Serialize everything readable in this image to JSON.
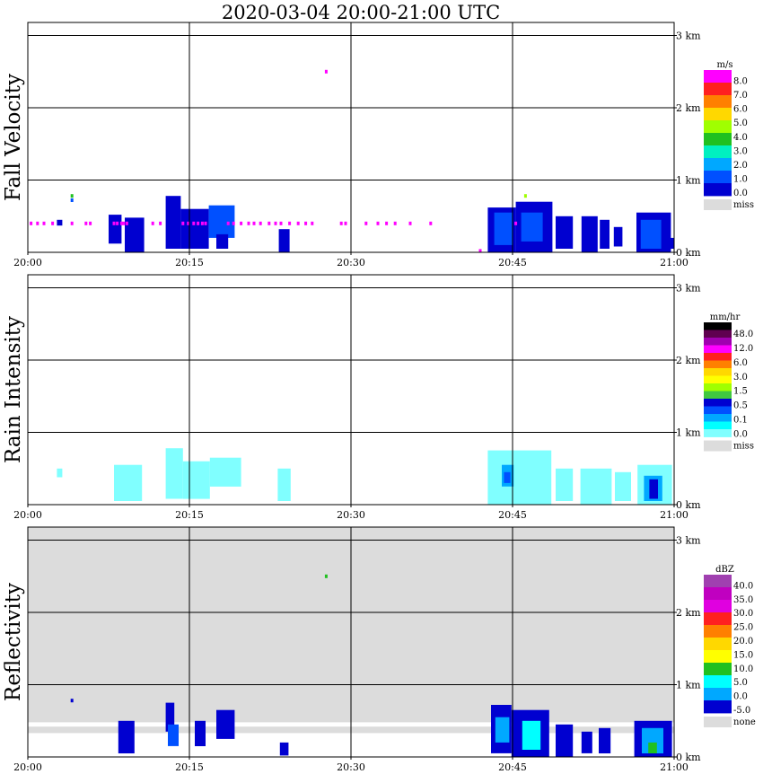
{
  "page": {
    "title": "2020-03-04   20:00-21:00 UTC"
  },
  "chart_data": [
    {
      "type": "heatmap",
      "title": "2020-03-04   20:00-21:00 UTC",
      "ylabel": "Fall Velocity",
      "x_ticks": [
        "20:00",
        "20:15",
        "20:30",
        "20:45",
        "21:00"
      ],
      "xlim_minutes": [
        0,
        60
      ],
      "y_ticks": [
        "0 km",
        "1 km",
        "2 km",
        "3 km"
      ],
      "ylim_km": [
        0,
        3.2
      ],
      "grid": true,
      "background": "#ffffff",
      "colorbar": {
        "unit": "m/s",
        "labels": [
          "8.0",
          "7.0",
          "6.0",
          "5.0",
          "4.0",
          "3.0",
          "2.0",
          "1.0",
          "0.0"
        ],
        "colors": [
          "#ff00ff",
          "#ff2020",
          "#ff8000",
          "#ffd800",
          "#a0ff00",
          "#20c020",
          "#00f0c0",
          "#00a8ff",
          "#0050ff",
          "#0000d0"
        ],
        "miss_label": "miss",
        "miss_color": "#dcdcdc"
      },
      "cells": [
        {
          "t": [
            7.5,
            8.7
          ],
          "z": [
            0.12,
            0.52
          ],
          "c": "#0000d0"
        },
        {
          "t": [
            9.0,
            10.8
          ],
          "z": [
            0.0,
            0.48
          ],
          "c": "#0000d0"
        },
        {
          "t": [
            12.8,
            14.2
          ],
          "z": [
            0.05,
            0.78
          ],
          "c": "#0000d0"
        },
        {
          "t": [
            14.2,
            16.8
          ],
          "z": [
            0.05,
            0.6
          ],
          "c": "#0000d0"
        },
        {
          "t": [
            16.8,
            19.2
          ],
          "z": [
            0.2,
            0.65
          ],
          "c": "#0050ff"
        },
        {
          "t": [
            17.5,
            18.6
          ],
          "z": [
            0.05,
            0.25
          ],
          "c": "#0000d0"
        },
        {
          "t": [
            23.3,
            24.3
          ],
          "z": [
            0.0,
            0.32
          ],
          "c": "#0000d0"
        },
        {
          "t": [
            2.7,
            3.2
          ],
          "z": [
            0.37,
            0.45
          ],
          "c": "#0000d0"
        },
        {
          "t": [
            42.7,
            45.3
          ],
          "z": [
            0.0,
            0.62
          ],
          "c": "#0000d0"
        },
        {
          "t": [
            43.3,
            45.0
          ],
          "z": [
            0.1,
            0.55
          ],
          "c": "#0050ff"
        },
        {
          "t": [
            45.3,
            48.7
          ],
          "z": [
            0.0,
            0.7
          ],
          "c": "#0000d0"
        },
        {
          "t": [
            45.8,
            47.8
          ],
          "z": [
            0.15,
            0.55
          ],
          "c": "#0050ff"
        },
        {
          "t": [
            49.0,
            50.6
          ],
          "z": [
            0.05,
            0.5
          ],
          "c": "#0000d0"
        },
        {
          "t": [
            51.4,
            52.9
          ],
          "z": [
            0.0,
            0.5
          ],
          "c": "#0000d0"
        },
        {
          "t": [
            53.1,
            54.0
          ],
          "z": [
            0.05,
            0.45
          ],
          "c": "#0000d0"
        },
        {
          "t": [
            54.4,
            55.2
          ],
          "z": [
            0.08,
            0.35
          ],
          "c": "#0000d0"
        },
        {
          "t": [
            56.5,
            59.7
          ],
          "z": [
            0.0,
            0.55
          ],
          "c": "#0000d0"
        },
        {
          "t": [
            56.9,
            58.8
          ],
          "z": [
            0.05,
            0.45
          ],
          "c": "#0050ff"
        },
        {
          "t": [
            59.2,
            60.0
          ],
          "z": [
            0.05,
            0.2
          ],
          "c": "#0000d0"
        }
      ],
      "points": [
        {
          "t": 4.1,
          "z": 0.78,
          "c": "#20c020"
        },
        {
          "t": 4.1,
          "z": 0.72,
          "c": "#0050ff"
        },
        {
          "t": 27.7,
          "z": 2.5,
          "c": "#ff00ff"
        },
        {
          "t": 46.2,
          "z": 0.78,
          "c": "#a0ff00"
        },
        {
          "t": 42.0,
          "z": 0.02,
          "c": "#ff00ff"
        }
      ],
      "clutter_band": {
        "z": 0.4,
        "color": "#ff00ff",
        "t_centers": [
          0.3,
          0.9,
          1.5,
          2.3,
          4.1,
          5.4,
          5.8,
          8.0,
          8.3,
          8.7,
          8.9,
          9.2,
          11.6,
          12.3,
          14.4,
          14.9,
          15.4,
          15.8,
          16.2,
          16.5,
          18.6,
          19.1,
          19.8,
          20.5,
          21.0,
          21.6,
          22.4,
          23.0,
          23.5,
          24.3,
          25.1,
          25.8,
          26.4,
          29.1,
          29.5,
          31.4,
          32.5,
          33.3,
          34.1,
          35.5,
          37.4,
          45.3
        ]
      }
    },
    {
      "type": "heatmap",
      "ylabel": "Rain Intensity",
      "x_ticks": [
        "20:00",
        "20:15",
        "20:30",
        "20:45",
        "21:00"
      ],
      "xlim_minutes": [
        0,
        60
      ],
      "y_ticks": [
        "0 km",
        "1 km",
        "2 km",
        "3 km"
      ],
      "ylim_km": [
        0,
        3.2
      ],
      "grid": true,
      "background": "#ffffff",
      "colorbar": {
        "unit": "mm/hr",
        "labels": [
          "48.0",
          "12.0",
          "6.0",
          "3.0",
          "1.5",
          "0.5",
          "0.1",
          "0.0"
        ],
        "colors": [
          "#000000",
          "#600050",
          "#a000b0",
          "#ff00ff",
          "#ff2020",
          "#ff8000",
          "#ffd800",
          "#ffff00",
          "#a0ff00",
          "#40c840",
          "#0000d0",
          "#0050ff",
          "#00a8ff",
          "#00ffff",
          "#80ffff"
        ],
        "miss_label": "miss",
        "miss_color": "#dcdcdc"
      },
      "cells": [
        {
          "t": [
            2.7,
            3.2
          ],
          "z": [
            0.38,
            0.5
          ],
          "c": "#80ffff"
        },
        {
          "t": [
            8.0,
            10.6
          ],
          "z": [
            0.05,
            0.55
          ],
          "c": "#80ffff"
        },
        {
          "t": [
            12.8,
            14.4
          ],
          "z": [
            0.08,
            0.78
          ],
          "c": "#80ffff"
        },
        {
          "t": [
            14.4,
            16.9
          ],
          "z": [
            0.08,
            0.6
          ],
          "c": "#80ffff"
        },
        {
          "t": [
            16.9,
            19.8
          ],
          "z": [
            0.25,
            0.65
          ],
          "c": "#80ffff"
        },
        {
          "t": [
            23.2,
            24.4
          ],
          "z": [
            0.05,
            0.5
          ],
          "c": "#80ffff"
        },
        {
          "t": [
            42.7,
            48.6
          ],
          "z": [
            0.0,
            0.75
          ],
          "c": "#80ffff"
        },
        {
          "t": [
            44.0,
            45.1
          ],
          "z": [
            0.25,
            0.55
          ],
          "c": "#00a8ff"
        },
        {
          "t": [
            44.2,
            44.8
          ],
          "z": [
            0.3,
            0.45
          ],
          "c": "#0050ff"
        },
        {
          "t": [
            49.0,
            50.6
          ],
          "z": [
            0.05,
            0.5
          ],
          "c": "#80ffff"
        },
        {
          "t": [
            51.3,
            54.2
          ],
          "z": [
            0.0,
            0.5
          ],
          "c": "#80ffff"
        },
        {
          "t": [
            54.5,
            56.0
          ],
          "z": [
            0.05,
            0.45
          ],
          "c": "#80ffff"
        },
        {
          "t": [
            56.6,
            59.8
          ],
          "z": [
            0.0,
            0.55
          ],
          "c": "#80ffff"
        },
        {
          "t": [
            57.2,
            58.9
          ],
          "z": [
            0.05,
            0.4
          ],
          "c": "#00a8ff"
        },
        {
          "t": [
            57.7,
            58.5
          ],
          "z": [
            0.08,
            0.35
          ],
          "c": "#0000d0"
        }
      ],
      "points": [],
      "clutter_band": null
    },
    {
      "type": "heatmap",
      "ylabel": "Reflectivity",
      "x_ticks": [
        "20:00",
        "20:15",
        "20:30",
        "20:45",
        "21:00"
      ],
      "xlim_minutes": [
        0,
        60
      ],
      "y_ticks": [
        "0 km",
        "1 km",
        "2 km",
        "3 km"
      ],
      "ylim_km": [
        0,
        3.2
      ],
      "grid": true,
      "background": "#dcdcdc",
      "colorbar": {
        "unit": "dBZ",
        "labels": [
          "40.0",
          "35.0",
          "30.0",
          "25.0",
          "20.0",
          "15.0",
          "10.0",
          "5.0",
          "0.0",
          "-5.0"
        ],
        "colors": [
          "#a040b0",
          "#c000c0",
          "#e000e0",
          "#ff2020",
          "#ff8000",
          "#ffd800",
          "#ffff00",
          "#20c020",
          "#00ffff",
          "#00a8ff",
          "#0000d0"
        ],
        "miss_label": "none",
        "miss_color": "#dcdcdc"
      },
      "cells": [
        {
          "t": [
            0.0,
            60.0
          ],
          "z": [
            0.0,
            0.48
          ],
          "c": "#ffffff"
        },
        {
          "t": [
            0.0,
            60.0
          ],
          "z": [
            0.33,
            0.42
          ],
          "c": "#dcdcdc"
        },
        {
          "t": [
            8.4,
            9.9
          ],
          "z": [
            0.05,
            0.5
          ],
          "c": "#0000d0"
        },
        {
          "t": [
            12.8,
            13.6
          ],
          "z": [
            0.35,
            0.75
          ],
          "c": "#0000d0"
        },
        {
          "t": [
            13.0,
            14.0
          ],
          "z": [
            0.15,
            0.45
          ],
          "c": "#0050ff"
        },
        {
          "t": [
            15.5,
            16.5
          ],
          "z": [
            0.15,
            0.5
          ],
          "c": "#0000d0"
        },
        {
          "t": [
            17.5,
            19.2
          ],
          "z": [
            0.25,
            0.65
          ],
          "c": "#0000d0"
        },
        {
          "t": [
            23.4,
            24.2
          ],
          "z": [
            0.02,
            0.2
          ],
          "c": "#0000d0"
        },
        {
          "t": [
            43.0,
            44.9
          ],
          "z": [
            0.05,
            0.72
          ],
          "c": "#0000d0"
        },
        {
          "t": [
            43.4,
            44.7
          ],
          "z": [
            0.2,
            0.55
          ],
          "c": "#00a8ff"
        },
        {
          "t": [
            44.9,
            48.4
          ],
          "z": [
            0.0,
            0.65
          ],
          "c": "#0000d0"
        },
        {
          "t": [
            45.9,
            47.6
          ],
          "z": [
            0.1,
            0.5
          ],
          "c": "#00ffff"
        },
        {
          "t": [
            49.0,
            50.6
          ],
          "z": [
            0.0,
            0.45
          ],
          "c": "#0000d0"
        },
        {
          "t": [
            51.4,
            52.4
          ],
          "z": [
            0.05,
            0.35
          ],
          "c": "#0000d0"
        },
        {
          "t": [
            53.0,
            54.1
          ],
          "z": [
            0.05,
            0.4
          ],
          "c": "#0000d0"
        },
        {
          "t": [
            56.3,
            59.8
          ],
          "z": [
            0.0,
            0.5
          ],
          "c": "#0000d0"
        },
        {
          "t": [
            57.0,
            59.0
          ],
          "z": [
            0.05,
            0.4
          ],
          "c": "#00a8ff"
        },
        {
          "t": [
            57.6,
            58.4
          ],
          "z": [
            0.05,
            0.2
          ],
          "c": "#20c020"
        }
      ],
      "points": [
        {
          "t": 27.7,
          "z": 2.5,
          "c": "#20c020"
        },
        {
          "t": 4.1,
          "z": 0.78,
          "c": "#0000d0"
        }
      ],
      "clutter_band": null
    }
  ]
}
